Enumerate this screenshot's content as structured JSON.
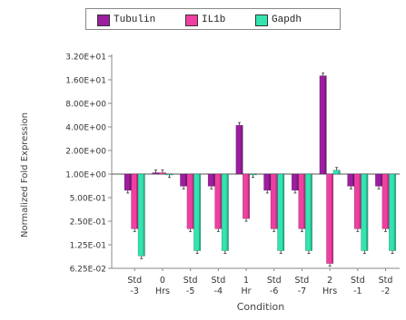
{
  "chart_data": {
    "type": "bar",
    "title": "",
    "xlabel": "Condition",
    "ylabel": "Normalized Fold Expression",
    "yscale": "log2",
    "ylim": [
      0.0625,
      32
    ],
    "baseline": 1,
    "grid": false,
    "legend_position": "top-center",
    "y_ticks": [
      32,
      16,
      8,
      4,
      2,
      1,
      0.5,
      0.25,
      0.125,
      0.0625
    ],
    "y_tick_labels": [
      "3.20E+01",
      "1.60E+01",
      "8.00E+00",
      "4.00E+00",
      "2.00E+00",
      "1.00E+00",
      "5.00E-01",
      "2.50E-01",
      "1.25E-01",
      "6.25E-02"
    ],
    "categories": [
      [
        "Std",
        "-3"
      ],
      [
        "0",
        "Hrs"
      ],
      [
        "Std",
        "-5"
      ],
      [
        "Std",
        "-4"
      ],
      [
        "1",
        "Hr"
      ],
      [
        "Std",
        "-6"
      ],
      [
        "Std",
        "-7"
      ],
      [
        "2",
        "Hrs"
      ],
      [
        "Std",
        "-1"
      ],
      [
        "Std",
        "-2"
      ]
    ],
    "series": [
      {
        "name": "Tubulin",
        "color": "#9c1ea0",
        "values": [
          0.62,
          1.04,
          0.7,
          0.7,
          4.2,
          0.62,
          0.62,
          18.0,
          0.7,
          0.7
        ]
      },
      {
        "name": "IL1b",
        "color": "#ef3fa3",
        "values": [
          0.2,
          1.04,
          0.2,
          0.2,
          0.27,
          0.2,
          0.2,
          0.072,
          0.2,
          0.2
        ]
      },
      {
        "name": "Gapdh",
        "color": "#33e3b0",
        "values": [
          0.09,
          0.98,
          0.105,
          0.105,
          0.98,
          0.105,
          0.105,
          1.12,
          0.105,
          0.105
        ]
      }
    ]
  }
}
